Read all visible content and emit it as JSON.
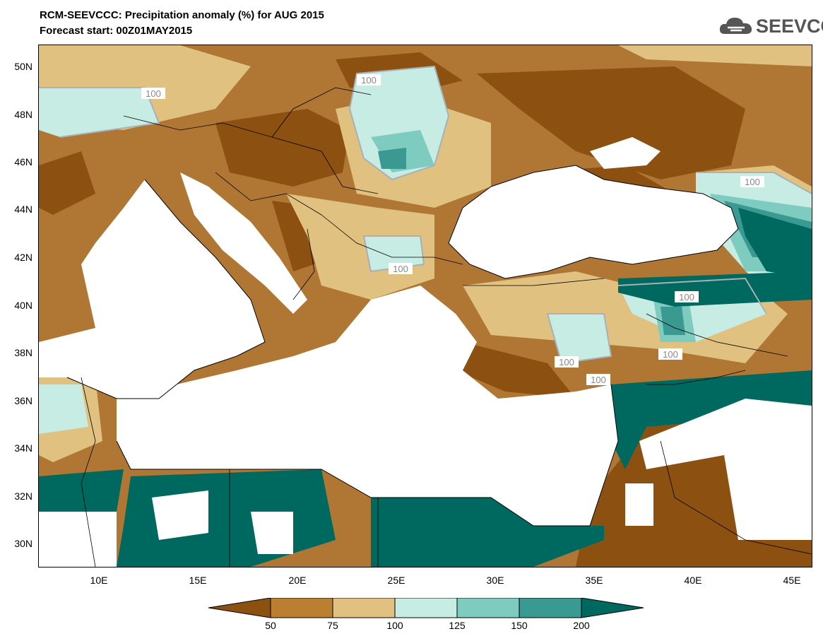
{
  "title_line1": "RCM-SEEVCCC: Precipitation anomaly (%) for AUG 2015",
  "title_line2": "Forecast start: 00Z01MAY2015",
  "logo": {
    "text": "SEEVCCC",
    "icon": "cloud-icon"
  },
  "map": {
    "lat_labels": [
      "50N",
      "48N",
      "46N",
      "44N",
      "42N",
      "40N",
      "38N",
      "36N",
      "34N",
      "32N",
      "30N"
    ],
    "lon_labels": [
      "10E",
      "15E",
      "20E",
      "25E",
      "30E",
      "35E",
      "40E",
      "45E"
    ],
    "contour_label": "100"
  },
  "colorbar": {
    "tick_labels": [
      "50",
      "75",
      "100",
      "125",
      "150",
      "200"
    ],
    "colors": [
      "#8c5010",
      "#bb7f32",
      "#e0c17f",
      "#c6ece4",
      "#7ecbc0",
      "#3a9990",
      "#00695f"
    ]
  },
  "colors": {
    "land": "#b07634",
    "sea": "#ffffff",
    "dry": "#8c5010",
    "wet": "#00695f"
  }
}
